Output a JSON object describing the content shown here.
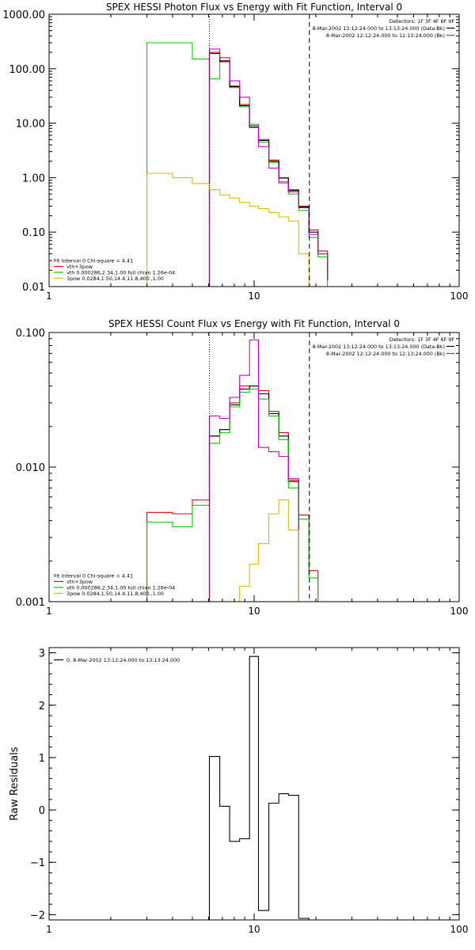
{
  "figure": {
    "background": "#ffffff",
    "colors": {
      "red": "#e00000",
      "green": "#00cc00",
      "magenta": "#cc00cc",
      "yellow": "#ddbb00",
      "black": "#000000"
    }
  },
  "chart_data": [
    {
      "type": "line",
      "step": true,
      "title": "SPEX HESSI Photon Flux vs Energy with Fit Function, Interval 0",
      "xlabel": "",
      "ylabel": "",
      "xscale": "log",
      "yscale": "log",
      "xlim": [
        1,
        100
      ],
      "ylim": [
        0.01,
        1000
      ],
      "x_ticks": [
        1,
        10,
        100
      ],
      "x_tick_labels": [
        "1",
        "10",
        "100"
      ],
      "y_ticks": [
        0.01,
        0.1,
        1,
        10,
        100,
        1000
      ],
      "y_tick_labels": [
        "0.01",
        "0.10",
        "1.00",
        "10.00",
        "100.00",
        "1000.00"
      ],
      "vlines": [
        {
          "x": 6.05,
          "style": "dotted",
          "color": "#000000"
        },
        {
          "x": 18.6,
          "style": "dashed",
          "color": "#000000"
        }
      ],
      "header": {
        "lines": [
          "Detectors: 1F 3F 4F 6F 9F",
          "8-Mar-2002 13:12:24.000 to 13:13:24.000 (Data-Bk)",
          "8-Mar-2002 12:12:24.000 to 12:13:24.000 (Bk)"
        ],
        "colors": [
          "",
          "#000000",
          "#cc00cc"
        ]
      },
      "legend": {
        "lines": [
          "Fit Interval 0   Chi-square = 4.41",
          "vth+3pow",
          "vth 0.000286,2.34,1.00   full chian 1.26e-04",
          "3pow 0.0284,1.50,14.4,11.8,400.,1.00"
        ],
        "colors": [
          "",
          "#e00000",
          "#00cc00",
          "#ddbb00"
        ]
      },
      "edges": [
        3.0,
        4.0,
        5.0,
        6.05,
        6.8,
        7.6,
        8.5,
        9.5,
        10.5,
        11.8,
        13.2,
        14.7,
        16.5,
        18.5,
        20.5,
        22.8
      ],
      "baseline": 0.01,
      "series": [
        {
          "color": "#00cc00",
          "start": 0,
          "values": [
            300,
            300,
            150,
            65,
            140,
            45,
            20,
            9.5,
            4.5,
            1.9,
            0.85,
            0.5,
            0.25,
            0.08,
            0.035
          ]
        },
        {
          "color": "#e00000",
          "start": 3,
          "values": [
            200,
            140,
            48,
            22,
            8.5,
            5,
            2.1,
            1.0,
            0.6,
            0.3,
            0.11,
            0.045,
            0.014
          ]
        },
        {
          "color": "#000000",
          "start": 3,
          "values": [
            190,
            135,
            47,
            21,
            8.4,
            4.8,
            2.0,
            0.98,
            0.58,
            0.29,
            0.1,
            0.04,
            0.013
          ]
        },
        {
          "color": "#cc00cc",
          "start": 3,
          "values": [
            230,
            160,
            60,
            30,
            9,
            3.7,
            1.5,
            0.8,
            0.55,
            0.28,
            0.09,
            0.04,
            0.013
          ]
        },
        {
          "color": "#ddbb00",
          "start": 0,
          "values": [
            1.2,
            1.0,
            0.78,
            0.6,
            0.48,
            0.42,
            0.35,
            0.3,
            0.27,
            0.23,
            0.19,
            0.16,
            0.04,
            0.01
          ]
        }
      ]
    },
    {
      "type": "line",
      "step": true,
      "title": "SPEX HESSI Count Flux vs Energy with Fit Function, Interval 0",
      "xlabel": "",
      "ylabel": "",
      "xscale": "log",
      "yscale": "log",
      "xlim": [
        1,
        100
      ],
      "ylim": [
        0.001,
        0.1
      ],
      "x_ticks": [
        1,
        10,
        100
      ],
      "x_tick_labels": [
        "1",
        "10",
        "100"
      ],
      "y_ticks": [
        0.001,
        0.01,
        0.1
      ],
      "y_tick_labels": [
        "0.001",
        "0.010",
        "0.100"
      ],
      "vlines": [
        {
          "x": 6.05,
          "style": "dotted",
          "color": "#000000"
        },
        {
          "x": 18.6,
          "style": "dashed",
          "color": "#000000"
        }
      ],
      "header": {
        "lines": [
          "Detectors: 1F 3F 4F 6F 9F",
          "8-Mar-2002 13:12:24.000 to 13:13:24.000 (Data-Bk)",
          "8-Mar-2002 12:12:24.000 to 12:13:24.000 (Bk)"
        ],
        "colors": [
          "",
          "#000000",
          "#cc00cc"
        ]
      },
      "legend": {
        "lines": [
          "Fit Interval 0   Chi-square = 4.41",
          "vth+3pow",
          "vth 0.000286,2.34,1.00   full chian 1.26e-04",
          "3pow 0.0284,1.50,14.4,11.8,400.,1.00"
        ],
        "colors": [
          "",
          "#e00000",
          "#00cc00",
          "#ddbb00"
        ]
      },
      "edges": [
        3.0,
        4.0,
        5.0,
        6.05,
        6.8,
        7.6,
        8.5,
        9.5,
        10.5,
        11.8,
        13.2,
        14.7,
        16.5,
        18.5,
        20.5,
        22.8
      ],
      "baseline": 0.001,
      "series": [
        {
          "color": "#e00000",
          "start": 0,
          "values": [
            0.0046,
            0.0045,
            0.0057,
            0.017,
            0.019,
            0.03,
            0.04,
            0.04,
            0.037,
            0.026,
            0.018,
            0.008,
            0.0044,
            0.0017
          ]
        },
        {
          "color": "#000000",
          "start": 3,
          "values": [
            0.017,
            0.019,
            0.029,
            0.038,
            0.04,
            0.035,
            0.025,
            0.017,
            0.0078
          ]
        },
        {
          "color": "#00cc00",
          "start": 0,
          "values": [
            0.0039,
            0.0036,
            0.0052,
            0.015,
            0.018,
            0.028,
            0.036,
            0.038,
            0.032,
            0.024,
            0.016,
            0.007,
            0.0041,
            0.0015
          ]
        },
        {
          "color": "#cc00cc",
          "start": 3,
          "values": [
            0.024,
            0.023,
            0.033,
            0.048,
            0.088,
            0.014,
            0.013,
            0.012,
            0.0082
          ]
        },
        {
          "color": "#ddbb00",
          "start": 6,
          "values": [
            0.0013,
            0.0019,
            0.0027,
            0.0045,
            0.0057,
            0.0034,
            0.001
          ]
        }
      ]
    },
    {
      "type": "line",
      "step": true,
      "title": "",
      "xlabel": "",
      "ylabel": "Raw Residuals",
      "xscale": "log",
      "yscale": "linear",
      "xlim": [
        1,
        100
      ],
      "ylim": [
        -2.1,
        3.1
      ],
      "x_ticks": [
        1,
        10,
        100
      ],
      "x_tick_labels": [
        "1",
        "10",
        "100"
      ],
      "y_ticks": [
        -2,
        -1,
        0,
        1,
        2,
        3
      ],
      "y_tick_labels": [
        "−2",
        "−1",
        "0",
        "1",
        "2",
        "3"
      ],
      "legend": {
        "lines": [
          "0.  8-Mar-2002 13:12:24.000 to 13:13:24.000"
        ],
        "colors": [
          "#000000"
        ]
      },
      "edges": [
        6.05,
        6.8,
        7.6,
        8.5,
        9.5,
        10.5,
        11.8,
        13.2,
        14.7,
        16.5,
        18.5
      ],
      "baseline": -2.1,
      "series": [
        {
          "color": "#000000",
          "start": 0,
          "values": [
            1.02,
            0.07,
            -0.6,
            -0.55,
            2.93,
            -1.92,
            0.13,
            0.31,
            0.28,
            -2.07
          ]
        }
      ]
    }
  ]
}
